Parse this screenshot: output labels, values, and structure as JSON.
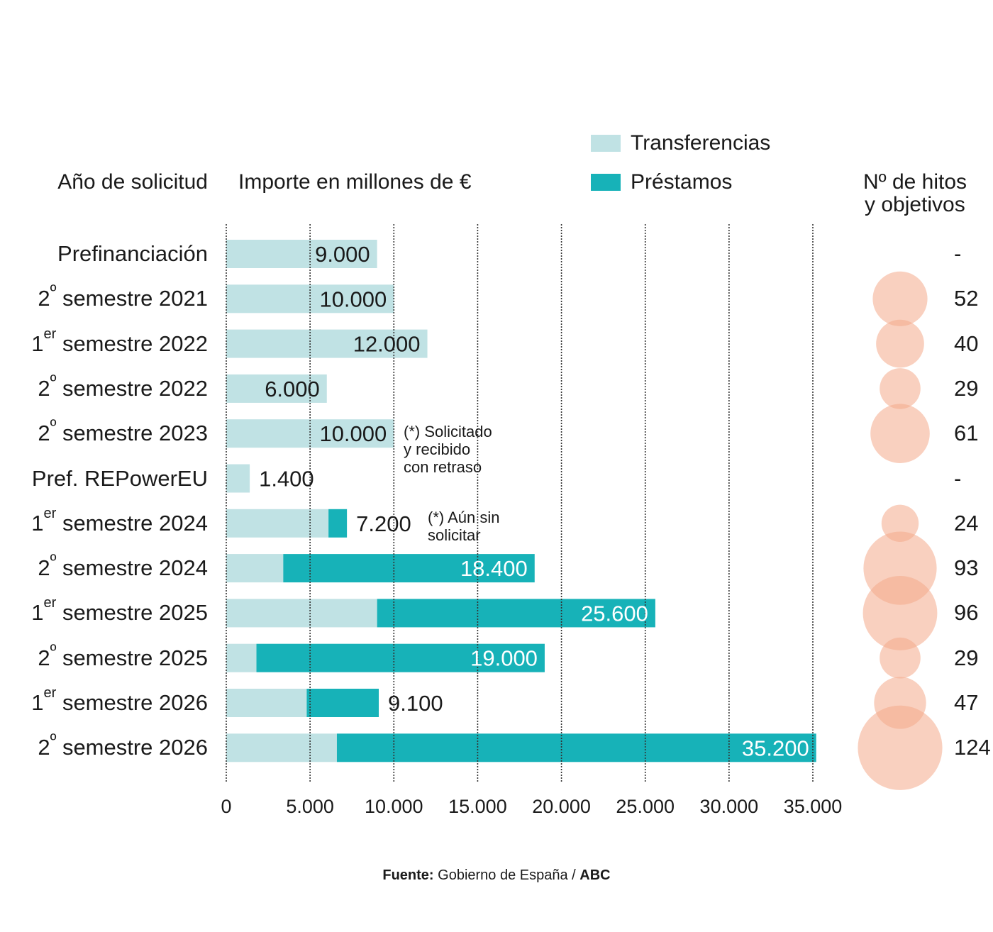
{
  "headers": {
    "row_axis": "Año de solicitud",
    "value_axis": "Importe en millones de €",
    "bubbles_line1": "Nº de hitos",
    "bubbles_line2": "y objetivos"
  },
  "legend": [
    {
      "label": "Transferencias",
      "color": "#c0e2e4"
    },
    {
      "label": "Préstamos",
      "color": "#17b2b8"
    }
  ],
  "notes": {
    "delayed": [
      "(*) Solicitado",
      "y recibido",
      "con retraso"
    ],
    "pending": [
      "(*)  Aún sin",
      "solicitar"
    ]
  },
  "source": {
    "bold": "Fuente:",
    "text": " Gobierno de España / ",
    "brand": "ABC"
  },
  "chart_data": {
    "type": "bar",
    "orientation": "horizontal",
    "stacked": true,
    "title": "",
    "xlabel": "Importe en millones de €",
    "ylabel": "Año de solicitud",
    "xlim": [
      0,
      35000
    ],
    "xticks": [
      0,
      5000,
      10000,
      15000,
      20000,
      25000,
      30000,
      35000
    ],
    "xtick_labels": [
      "0",
      "5.000",
      "10.000",
      "15.000",
      "20.000",
      "25.000",
      "30.000",
      "35.000"
    ],
    "grid": "vertical dotted",
    "legend_position": "top-right",
    "categories": [
      {
        "num": "",
        "sup": "",
        "text": "Prefinanciación"
      },
      {
        "num": "2",
        "sup": "º",
        "text": " semestre 2021"
      },
      {
        "num": "1",
        "sup": "er",
        "text": " semestre 2022"
      },
      {
        "num": "2",
        "sup": "º",
        "text": " semestre 2022"
      },
      {
        "num": "2",
        "sup": "º",
        "text": " semestre 2023"
      },
      {
        "num": "",
        "sup": "",
        "text": "Pref. REPowerEU"
      },
      {
        "num": "1",
        "sup": "er",
        "text": " semestre 2024"
      },
      {
        "num": "2",
        "sup": "º",
        "text": " semestre 2024"
      },
      {
        "num": "1",
        "sup": "er",
        "text": " semestre 2025"
      },
      {
        "num": "2",
        "sup": "º",
        "text": " semestre 2025"
      },
      {
        "num": "1",
        "sup": "er",
        "text": " semestre 2026"
      },
      {
        "num": "2",
        "sup": "º",
        "text": " semestre 2026"
      }
    ],
    "series": [
      {
        "name": "Transferencias",
        "color": "#c0e2e4",
        "values": [
          9000,
          10000,
          12000,
          6000,
          10000,
          1400,
          6100,
          3400,
          9000,
          1800,
          4800,
          6600
        ]
      },
      {
        "name": "Préstamos",
        "color": "#17b2b8",
        "values": [
          0,
          0,
          0,
          0,
          0,
          0,
          1100,
          15000,
          16600,
          17200,
          4300,
          28600
        ]
      }
    ],
    "totals": [
      9000,
      10000,
      12000,
      6000,
      10000,
      1400,
      7200,
      18400,
      25600,
      19000,
      9100,
      35200
    ],
    "total_labels": [
      "9.000",
      "10.000",
      "12.000",
      "6.000",
      "10.000",
      "1.400",
      "7.200",
      "18.400",
      "25.600",
      "19.000",
      "9.100",
      "35.200"
    ],
    "label_inside": [
      true,
      true,
      true,
      true,
      true,
      false,
      false,
      true,
      true,
      true,
      false,
      true
    ],
    "bubbles": {
      "name": "Nº de hitos y objetivos",
      "color": "#f4a98a",
      "values": [
        null,
        52,
        40,
        29,
        61,
        null,
        24,
        93,
        96,
        29,
        47,
        124
      ],
      "labels": [
        "-",
        "52",
        "40",
        "29",
        "61",
        "-",
        "24",
        "93",
        "96",
        "29",
        "47",
        "124"
      ]
    }
  }
}
